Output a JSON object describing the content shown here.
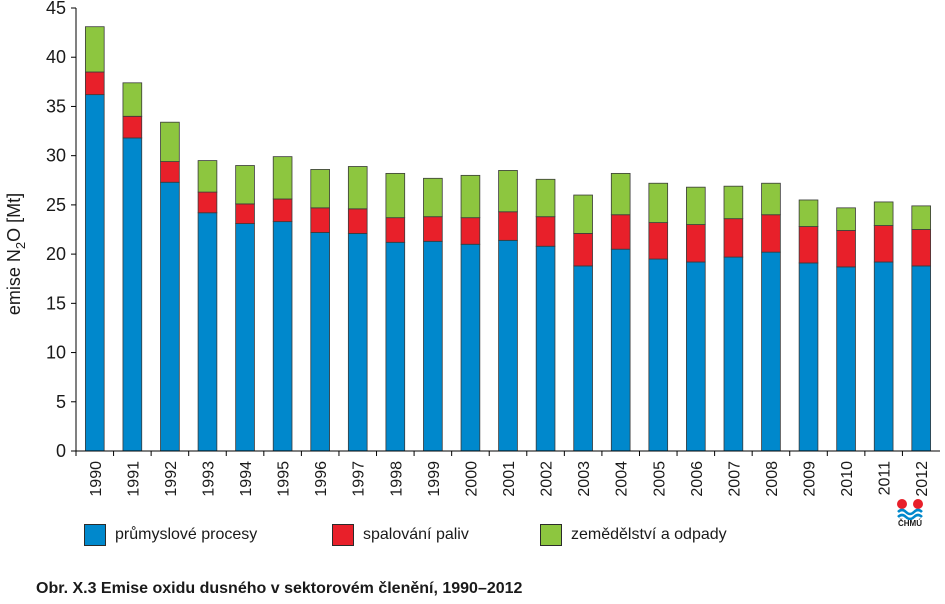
{
  "chart_data": {
    "type": "bar",
    "stacked": true,
    "categories": [
      "1990",
      "1991",
      "1992",
      "1993",
      "1994",
      "1995",
      "1996",
      "1997",
      "1998",
      "1999",
      "2000",
      "2001",
      "2002",
      "2003",
      "2004",
      "2005",
      "2006",
      "2007",
      "2008",
      "2009",
      "2010",
      "2011",
      "2012"
    ],
    "series": [
      {
        "name": "průmyslové procesy",
        "color": "#0088cc",
        "values": [
          36.2,
          31.8,
          27.3,
          24.2,
          23.1,
          23.3,
          22.2,
          22.1,
          21.2,
          21.3,
          21.0,
          21.4,
          20.8,
          18.8,
          20.5,
          19.5,
          19.2,
          19.7,
          20.2,
          19.1,
          18.7,
          19.2,
          18.8
        ]
      },
      {
        "name": "spalování paliv",
        "color": "#e8202a",
        "values": [
          2.3,
          2.2,
          2.1,
          2.1,
          2.0,
          2.3,
          2.5,
          2.5,
          2.5,
          2.5,
          2.7,
          2.9,
          3.0,
          3.3,
          3.5,
          3.7,
          3.8,
          3.9,
          3.8,
          3.7,
          3.7,
          3.7,
          3.7
        ]
      },
      {
        "name": "zemědělství a odpady",
        "color": "#8dc63f",
        "values": [
          4.6,
          3.4,
          4.0,
          3.2,
          3.9,
          4.3,
          3.9,
          4.3,
          4.5,
          3.9,
          4.3,
          4.2,
          3.8,
          3.9,
          4.2,
          4.0,
          3.8,
          3.3,
          3.2,
          2.7,
          2.3,
          2.4,
          2.4
        ]
      }
    ],
    "ylabel": "emise N₂O [Mt]",
    "ylim": [
      0,
      45
    ],
    "yticks": [
      "0",
      "5",
      "10",
      "15",
      "20",
      "25",
      "30",
      "35",
      "40",
      "45"
    ],
    "grid": false,
    "legend_position": "bottom"
  },
  "caption": "Obr. X.3  Emise oxidu dusného v sektorovém členění, 1990–2012",
  "logo": {
    "text": "ČHMÚ"
  }
}
